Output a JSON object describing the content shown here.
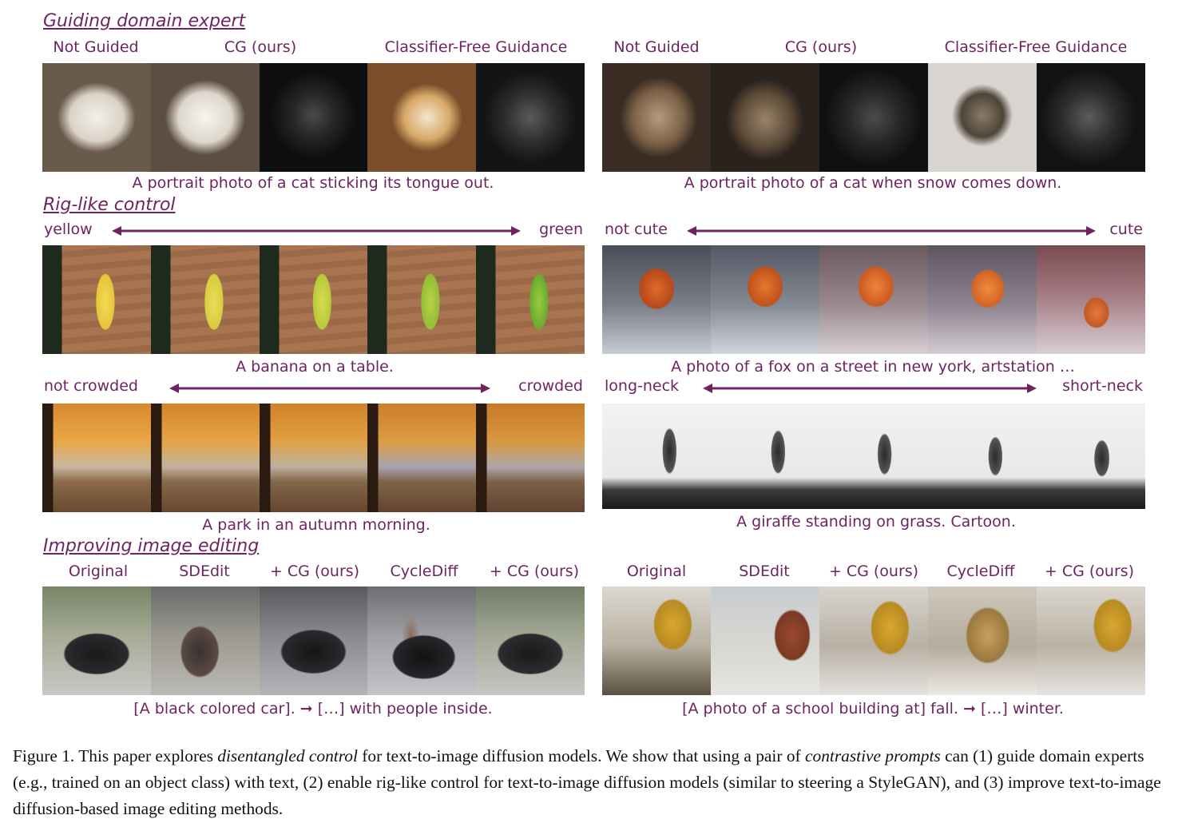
{
  "sections": {
    "guiding": "Guiding domain expert",
    "rig": "Rig-like control",
    "editing": "Improving image editing"
  },
  "guiding": {
    "left_labels": [
      "Not Guided",
      "CG (ours)",
      "Classifier-Free Guidance"
    ],
    "right_labels": [
      "Not Guided",
      "CG (ours)",
      "Classifier-Free Guidance"
    ],
    "left_caption": "A portrait photo of a cat sticking its tongue out.",
    "right_caption": "A portrait photo of a cat when snow comes down."
  },
  "rig": {
    "banana": {
      "left": "yellow",
      "right": "green",
      "caption": "A banana on a table."
    },
    "fox": {
      "left": "not cute",
      "right": "cute",
      "caption": "A photo of a fox on a street in new york, artstation …"
    },
    "park": {
      "left": "not crowded",
      "right": "crowded",
      "caption": "A park in an autumn morning."
    },
    "giraffe": {
      "left": "long-neck",
      "right": "short-neck",
      "caption": "A giraffe standing on grass. Cartoon."
    }
  },
  "editing": {
    "left_labels": [
      "Original",
      "SDEdit",
      "+ CG (ours)",
      "CycleDiff",
      "+ CG (ours)"
    ],
    "right_labels": [
      "Original",
      "SDEdit",
      "+ CG (ours)",
      "CycleDiff",
      "+ CG (ours)"
    ],
    "left_caption": "[A black colored car].  ➞  […] with people inside.",
    "right_caption": "[A photo of a school building at] fall.  ➞  […] winter."
  },
  "figure_caption": {
    "p1": "Figure 1. This paper explores ",
    "em1": "disentangled control",
    "p2": " for text-to-image diffusion models. We show that using a pair of ",
    "em2": "contrastive prompts",
    "p3": " can (1) guide domain experts (e.g., trained on an object class) with text, (2) enable rig-like control for text-to-image diffusion models (similar to steering a StyleGAN), and (3) improve text-to-image diffusion-based image editing methods."
  },
  "colors": {
    "accent": "#6e2460"
  }
}
